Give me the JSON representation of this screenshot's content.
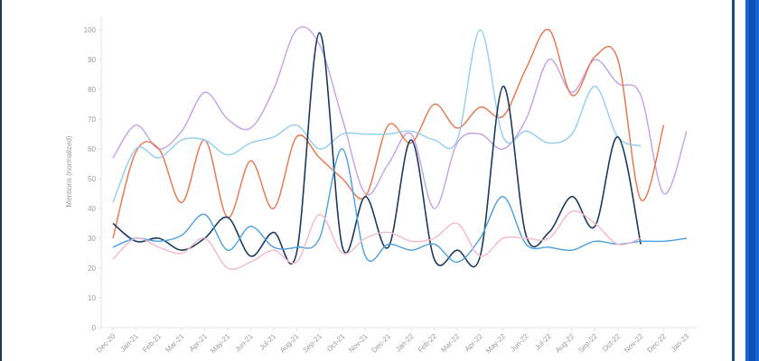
{
  "chart_data": {
    "type": "line",
    "ylabel": "Mentions (normalized)",
    "ylim": [
      0,
      105
    ],
    "yticks": [
      0,
      10,
      20,
      30,
      40,
      50,
      60,
      70,
      80,
      90,
      100
    ],
    "grid": false,
    "categories": [
      "Dec-20",
      "Jan-21",
      "Feb-21",
      "Mar-21",
      "Apr-21",
      "May-21",
      "Jun-21",
      "Jul-21",
      "Aug-21",
      "Sep-21",
      "Oct-21",
      "Nov-21",
      "Dec-21",
      "Jan-22",
      "Feb-22",
      "Mar-22",
      "Apr-22",
      "May-22",
      "Jun-22",
      "Jul-22",
      "Aug-22",
      "Sep-22",
      "Oct-22",
      "Nov-22",
      "Dec-22",
      "Jan-23"
    ],
    "series": [
      {
        "color": "#c4a1e3",
        "values": [
          57,
          68,
          60,
          66,
          79,
          70,
          67,
          80,
          100,
          95,
          70,
          45,
          55,
          65,
          40,
          62,
          65,
          60,
          70,
          90,
          79,
          90,
          82,
          78,
          45,
          66
        ]
      },
      {
        "color": "#e8734a",
        "values": [
          30,
          59,
          60,
          42,
          63,
          37,
          56,
          40,
          64,
          57,
          50,
          44,
          68,
          62,
          75,
          67,
          74,
          71,
          87,
          100,
          78,
          91,
          90,
          43,
          68,
          null
        ]
      },
      {
        "color": "#92cdee",
        "values": [
          42,
          60,
          57,
          63,
          63,
          58,
          62,
          64,
          68,
          60,
          65,
          65,
          65,
          66,
          63,
          63,
          100,
          64,
          66,
          62,
          65,
          81,
          64,
          61,
          null,
          null
        ]
      },
      {
        "color": "#1b3a5e",
        "values": [
          35,
          29,
          30,
          26,
          30,
          37,
          24,
          32,
          25,
          99,
          27,
          44,
          27,
          63,
          23,
          26,
          24,
          81,
          31,
          32,
          44,
          34,
          64,
          28,
          null,
          null
        ]
      },
      {
        "color": "#4a9fe0",
        "values": [
          27,
          30,
          29,
          31,
          38,
          26,
          34,
          27,
          27,
          30,
          60,
          24,
          28,
          26,
          28,
          22,
          30,
          44,
          28,
          27,
          26,
          29,
          28,
          29,
          29,
          30
        ]
      },
      {
        "color": "#f2b8cc",
        "values": [
          23,
          30,
          27,
          25,
          30,
          20,
          22,
          26,
          22,
          38,
          25,
          30,
          32,
          29,
          30,
          35,
          24,
          30,
          30,
          30,
          39,
          35,
          28,
          30,
          null,
          null
        ]
      }
    ]
  }
}
